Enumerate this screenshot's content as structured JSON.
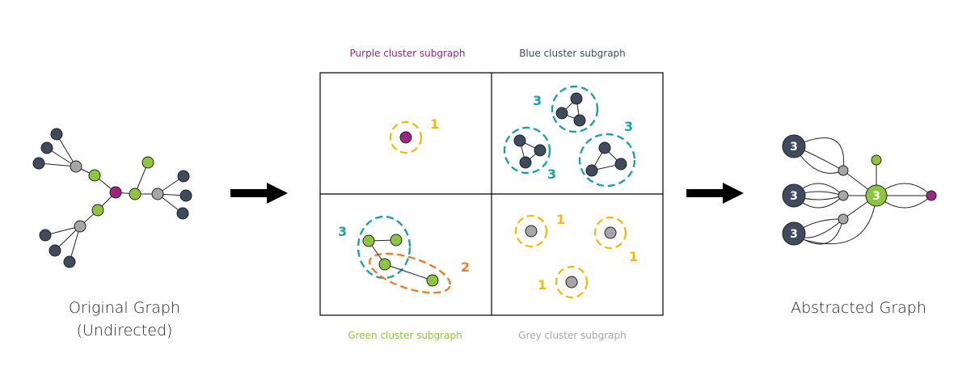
{
  "colors": {
    "purple": "#9b2583",
    "navy": "#3e4a5e",
    "green": "#8cc63f",
    "grey": "#a6a6a6",
    "teal": "#1aa3a3",
    "yellow": "#f5b800",
    "orange": "#f07d28"
  },
  "left": {
    "caption_line1": "Original Graph",
    "caption_line2": "(Undirected)"
  },
  "middle": {
    "titles": {
      "purple": "Purple cluster subgraph",
      "blue": "Blue cluster subgraph",
      "green": "Green cluster subgraph",
      "grey": "Grey cluster subgraph"
    },
    "labels": {
      "purple_1": "1",
      "blue_top": "3",
      "blue_left": "3",
      "blue_right": "3",
      "green_3": "3",
      "green_2": "2",
      "grey_a": "1",
      "grey_b": "1",
      "grey_c": "1"
    }
  },
  "right": {
    "caption": "Abstracted Graph",
    "node_labels": {
      "top": "3",
      "mid": "3",
      "bottom": "3",
      "center": "3"
    }
  }
}
